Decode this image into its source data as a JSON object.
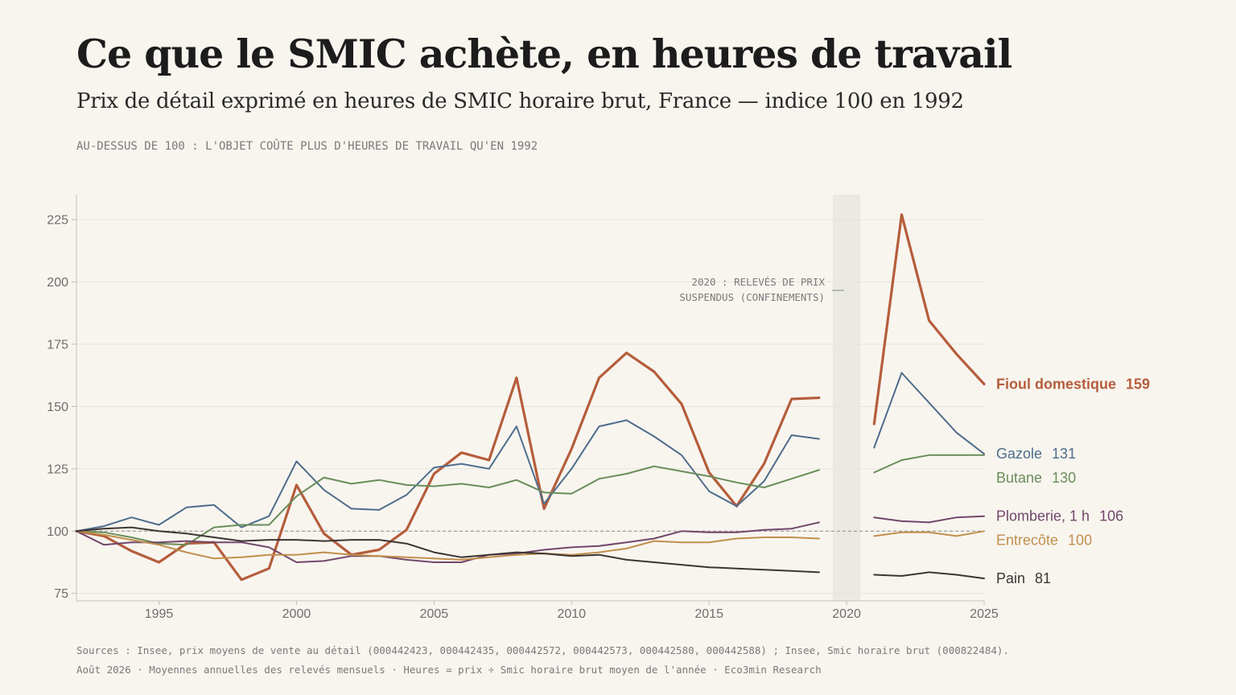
{
  "chart_data": {
    "type": "line",
    "title": "Ce que le SMIC achète, en heures de travail",
    "subtitle": "Prix de détail exprimé en heures de SMIC horaire brut, France — indice 100 en 1992",
    "note": "AU-DESSUS DE 100 : L'OBJET COÛTE PLUS D'HEURES DE TRAVAIL QU'EN 1992",
    "xlim": [
      1992,
      2025
    ],
    "ylim": [
      72,
      235
    ],
    "x_ticks": [
      1995,
      2000,
      2005,
      2010,
      2015,
      2020,
      2025
    ],
    "y_ticks": [
      75,
      100,
      125,
      150,
      175,
      200,
      225
    ],
    "reference_line": 100,
    "gap_band": {
      "from": 2019.5,
      "to": 2020.5
    },
    "annotation": {
      "line1": "2020 : RELEVÉS DE PRIX",
      "line2": "SUSPENDUS (CONFINEMENTS)"
    },
    "grid": true,
    "legend": "direct labels at right end of lines",
    "x": [
      1992,
      1993,
      1994,
      1995,
      1996,
      1997,
      1998,
      1999,
      2000,
      2001,
      2002,
      2003,
      2004,
      2005,
      2006,
      2007,
      2008,
      2009,
      2010,
      2011,
      2012,
      2013,
      2014,
      2015,
      2016,
      2017,
      2018,
      2019,
      2020,
      2021,
      2022,
      2023,
      2024,
      2025
    ],
    "series": [
      {
        "name": "Fioul domestique",
        "end_label": "159",
        "color": "#b55d3c",
        "width": 3.2,
        "values": [
          100,
          98,
          92,
          87.5,
          95,
          95.5,
          80.5,
          85,
          118.5,
          99,
          90.5,
          92.5,
          100.5,
          123,
          131.5,
          128.5,
          161.5,
          109,
          133,
          161.5,
          171.5,
          164,
          151,
          123.5,
          110,
          127,
          153,
          153.5,
          null,
          143,
          227,
          184.5,
          171,
          159
        ]
      },
      {
        "name": "Gazole",
        "end_label": "131",
        "color": "#4f6d8c",
        "width": 2,
        "values": [
          100,
          102,
          105.5,
          102.5,
          109.5,
          110.5,
          101.5,
          106,
          128,
          116.5,
          109,
          108.5,
          114.5,
          125.5,
          127,
          125,
          142,
          111,
          125,
          142,
          144.5,
          138,
          130.5,
          116,
          110,
          120,
          138.5,
          137,
          null,
          133.5,
          163.5,
          151.5,
          139.5,
          131
        ]
      },
      {
        "name": "Butane",
        "end_label": "130",
        "color": "#6a8d5a",
        "width": 2,
        "values": [
          100,
          99.5,
          97.5,
          95,
          94.5,
          101.5,
          102.5,
          102.5,
          114,
          121.5,
          119,
          120.5,
          118.5,
          118,
          119,
          117.5,
          120.5,
          115.5,
          115,
          121,
          123,
          126,
          124,
          122,
          119.5,
          117.5,
          121,
          124.5,
          null,
          123.5,
          128.5,
          130.5,
          130.5,
          130.5
        ]
      },
      {
        "name": "Plomberie, 1 h",
        "end_label": "106",
        "color": "#71476a",
        "width": 2,
        "values": [
          100,
          94.5,
          95.5,
          95.5,
          96,
          95.5,
          95.5,
          93.5,
          87.5,
          88,
          90,
          90,
          88.5,
          87.5,
          87.5,
          90.5,
          91,
          92.5,
          93.5,
          94,
          95.5,
          97,
          100,
          99.5,
          99.5,
          100.5,
          101,
          103.5,
          null,
          105.5,
          104,
          103.5,
          105.5,
          106
        ]
      },
      {
        "name": "Entrecôte",
        "end_label": "100",
        "color": "#c18f4d",
        "width": 2,
        "values": [
          100,
          98.5,
          96.5,
          94.5,
          91.5,
          89,
          89.5,
          90.5,
          90.5,
          91.5,
          90.5,
          90,
          89.5,
          89,
          88.5,
          89.5,
          90.5,
          91,
          90.5,
          91.5,
          93,
          96,
          95.5,
          95.5,
          97,
          97.5,
          97.5,
          97,
          null,
          98,
          99.5,
          99.5,
          98,
          100
        ]
      },
      {
        "name": "Pain",
        "end_label": "81",
        "color": "#3d3533",
        "width": 2,
        "values": [
          100,
          101,
          101.5,
          100,
          99,
          97.5,
          96,
          96.5,
          96.5,
          96,
          96.5,
          96.5,
          95,
          91.5,
          89.5,
          90.5,
          91.5,
          91,
          90,
          90.5,
          88.5,
          87.5,
          86.5,
          85.5,
          85,
          84.5,
          84,
          83.5,
          null,
          82.5,
          82,
          83.5,
          82.5,
          81
        ]
      }
    ]
  },
  "sources": {
    "line1": "Sources : Insee, prix moyens de vente au détail (000442423, 000442435, 000442572, 000442573, 000442580, 000442588) ; Insee, Smic horaire brut (000822484).",
    "line2": "Août 2026 · Moyennes annuelles des relevés mensuels · Heures = prix ÷ Smic horaire brut moyen de l'année · Eco3min Research"
  }
}
